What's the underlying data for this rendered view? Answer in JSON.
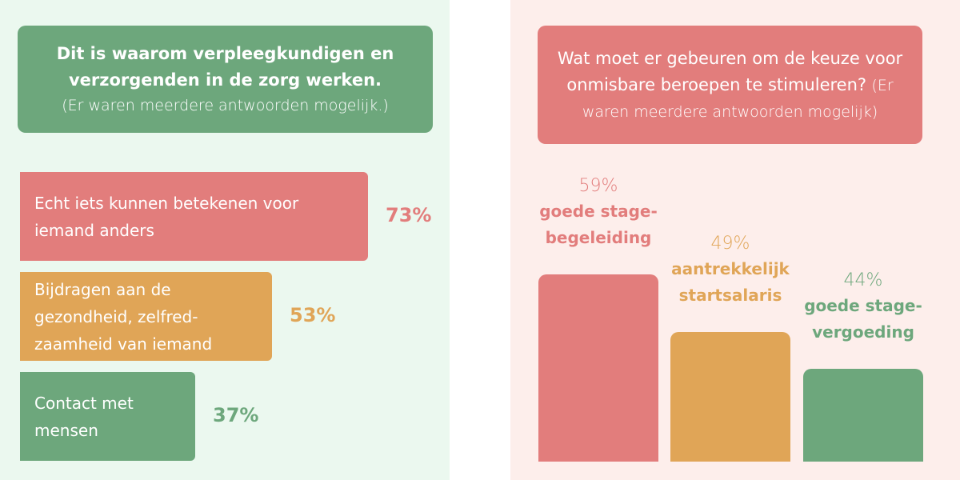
{
  "chart_data": [
    {
      "type": "bar",
      "orientation": "horizontal",
      "title": "Dit is waarom verpleegkundigen en verzorgenden in de zorg werken.",
      "subtitle": "(Er waren meerdere antwoorden mogelijk.)",
      "categories": [
        "Echt iets kunnen betekenen voor iemand anders",
        "Bijdragen aan de gezondheid, zelfred-zaamheid van iemand",
        "Contact met mensen"
      ],
      "values": [
        73,
        53,
        37
      ],
      "labels": [
        "73%",
        "53%",
        "37%"
      ],
      "colors": [
        "#e27d7c",
        "#e0a557",
        "#6da77c"
      ]
    },
    {
      "type": "bar",
      "orientation": "vertical",
      "title": "Wat moet er gebeuren om de keuze voor onmisbare beroepen te stimuleren?",
      "subtitle": "(Er waren meerdere antwoorden mogelijk)",
      "categories": [
        "goede stage-begeleiding",
        "aantrekkelijk startsalaris",
        "goede stage-vergoeding"
      ],
      "values": [
        59,
        49,
        44
      ],
      "labels": [
        "59%",
        "49%",
        "44%"
      ],
      "colors": [
        "#e27d7c",
        "#e0a557",
        "#6da77c"
      ]
    }
  ]
}
